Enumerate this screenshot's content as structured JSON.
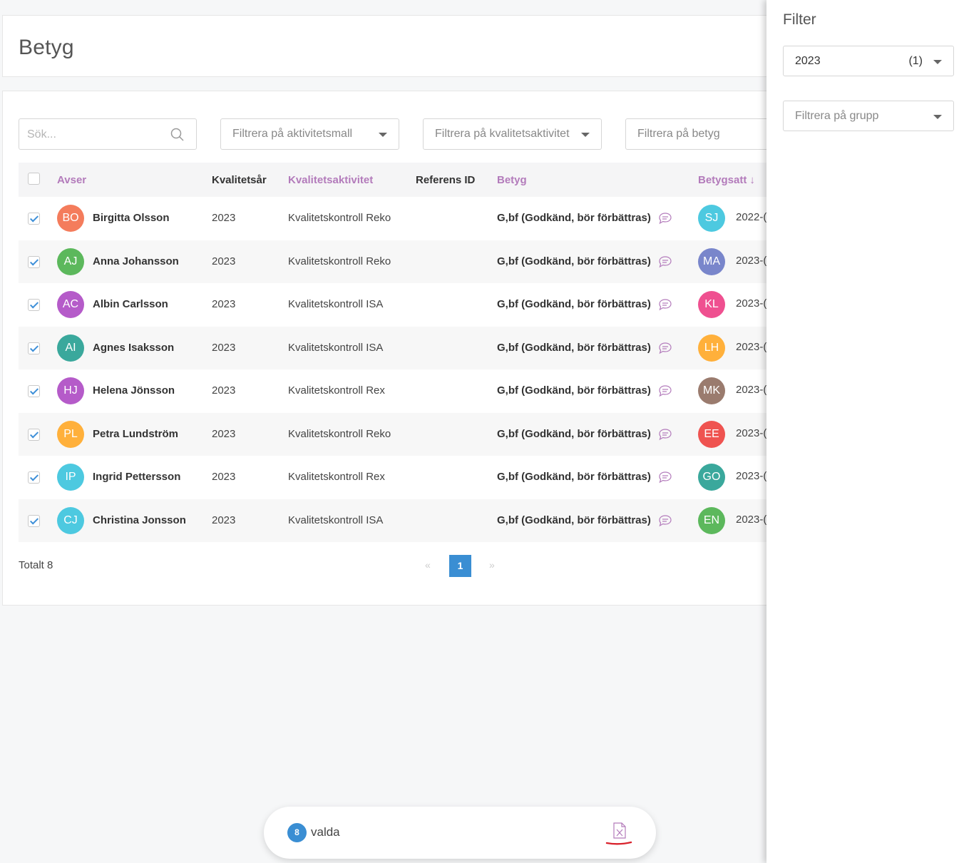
{
  "header": {
    "title": "Betyg"
  },
  "toolbar": {
    "search_placeholder": "Sök...",
    "filter_activity_template": "Filtrera på aktivitetsmall",
    "filter_quality_activity": "Filtrera på kvalitetsaktivitet",
    "filter_grade": "Filtrera på betyg"
  },
  "table": {
    "columns": [
      "Avser",
      "Kvalitetsår",
      "Kvalitetsaktivitet",
      "Referens ID",
      "Betyg",
      "Betygsatt"
    ],
    "sort_indicator": "↓",
    "rows": [
      {
        "initials": "BO",
        "name": "Birgitta Olsson",
        "year": "2023",
        "activity": "Kvalitetskontroll Reko",
        "reference": "",
        "grade": "G,bf (Godkänd, bör förbättras)",
        "grader_initials": "SJ",
        "date": "2022-(",
        "avatar_color": "#f47c5c",
        "grader_color": "#4dc9e0",
        "checked": true
      },
      {
        "initials": "AJ",
        "name": "Anna Johansson",
        "year": "2023",
        "activity": "Kvalitetskontroll Reko",
        "reference": "",
        "grade": "G,bf (Godkänd, bör förbättras)",
        "grader_initials": "MA",
        "date": "2023-(",
        "avatar_color": "#5cb85c",
        "grader_color": "#7986cb",
        "checked": true
      },
      {
        "initials": "AC",
        "name": "Albin Carlsson",
        "year": "2023",
        "activity": "Kvalitetskontroll ISA",
        "reference": "",
        "grade": "G,bf (Godkänd, bör förbättras)",
        "grader_initials": "KL",
        "date": "2023-(",
        "avatar_color": "#b55bc9",
        "grader_color": "#ef5090",
        "checked": true
      },
      {
        "initials": "AI",
        "name": "Agnes Isaksson",
        "year": "2023",
        "activity": "Kvalitetskontroll ISA",
        "reference": "",
        "grade": "G,bf (Godkänd, bör förbättras)",
        "grader_initials": "LH",
        "date": "2023-(",
        "avatar_color": "#3aa89c",
        "grader_color": "#ffb03b",
        "checked": true
      },
      {
        "initials": "HJ",
        "name": "Helena Jönsson",
        "year": "2023",
        "activity": "Kvalitetskontroll Rex",
        "reference": "",
        "grade": "G,bf (Godkänd, bör förbättras)",
        "grader_initials": "MK",
        "date": "2023-(",
        "avatar_color": "#b55bc9",
        "grader_color": "#9a7b6e",
        "checked": true
      },
      {
        "initials": "PL",
        "name": "Petra Lundström",
        "year": "2023",
        "activity": "Kvalitetskontroll Reko",
        "reference": "",
        "grade": "G,bf (Godkänd, bör förbättras)",
        "grader_initials": "EE",
        "date": "2023-(",
        "avatar_color": "#ffb03b",
        "grader_color": "#ef5350",
        "checked": true
      },
      {
        "initials": "IP",
        "name": "Ingrid Pettersson",
        "year": "2023",
        "activity": "Kvalitetskontroll Rex",
        "reference": "",
        "grade": "G,bf (Godkänd, bör förbättras)",
        "grader_initials": "GO",
        "date": "2023-(",
        "avatar_color": "#4dc9e0",
        "grader_color": "#3aa89c",
        "checked": true
      },
      {
        "initials": "CJ",
        "name": "Christina Jonsson",
        "year": "2023",
        "activity": "Kvalitetskontroll ISA",
        "reference": "",
        "grade": "G,bf (Godkänd, bör förbättras)",
        "grader_initials": "EN",
        "date": "2023-(",
        "avatar_color": "#4dc9e0",
        "grader_color": "#5cb85c",
        "checked": true
      }
    ]
  },
  "footer": {
    "total": "Totalt 8",
    "prev": "«",
    "current_page": "1",
    "next": "»"
  },
  "filter_panel": {
    "title": "Filter",
    "year_value": "2023",
    "year_count": "(1)",
    "group_placeholder": "Filtrera på grupp"
  },
  "action_bar": {
    "count": "8",
    "label": "valda",
    "export_icon": "excel-export-icon"
  },
  "colors": {
    "accent": "#3a8ed3",
    "purple_header": "#b37bbb",
    "export_red": "#d9232d"
  }
}
